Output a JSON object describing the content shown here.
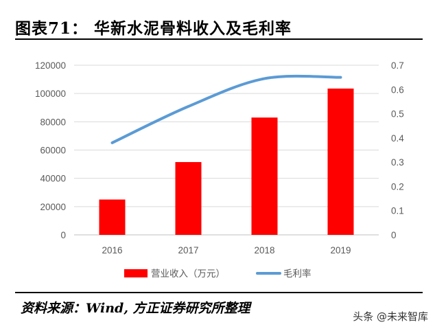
{
  "header": {
    "title": "图表71：  华新水泥骨料收入及毛利率"
  },
  "footer": {
    "source": "资料来源：Wind, 方正证券研究所整理",
    "watermark": "头条 @未来智库"
  },
  "colors": {
    "bar": "#ff0000",
    "line": "#5b9bd5",
    "grid": "#d9d9d9",
    "tick_text": "#595959"
  },
  "chart_data": {
    "type": "bar+line",
    "categories": [
      "2016",
      "2017",
      "2018",
      "2019"
    ],
    "series": [
      {
        "name": "营业收入（万元）",
        "type": "bar",
        "axis": "left",
        "values": [
          25000,
          51500,
          83000,
          103500
        ]
      },
      {
        "name": "毛利率",
        "type": "line",
        "axis": "right",
        "smooth": true,
        "values": [
          0.38,
          0.53,
          0.645,
          0.65
        ]
      }
    ],
    "y_left": {
      "min": 0,
      "max": 120000,
      "step": 20000,
      "ticks": [
        "0",
        "20000",
        "40000",
        "60000",
        "80000",
        "100000",
        "120000"
      ]
    },
    "y_right": {
      "min": 0,
      "max": 0.7,
      "step": 0.1,
      "ticks": [
        "0",
        "0.1",
        "0.2",
        "0.3",
        "0.4",
        "0.5",
        "0.6",
        "0.7"
      ]
    },
    "grid": true,
    "legend_position": "bottom"
  }
}
